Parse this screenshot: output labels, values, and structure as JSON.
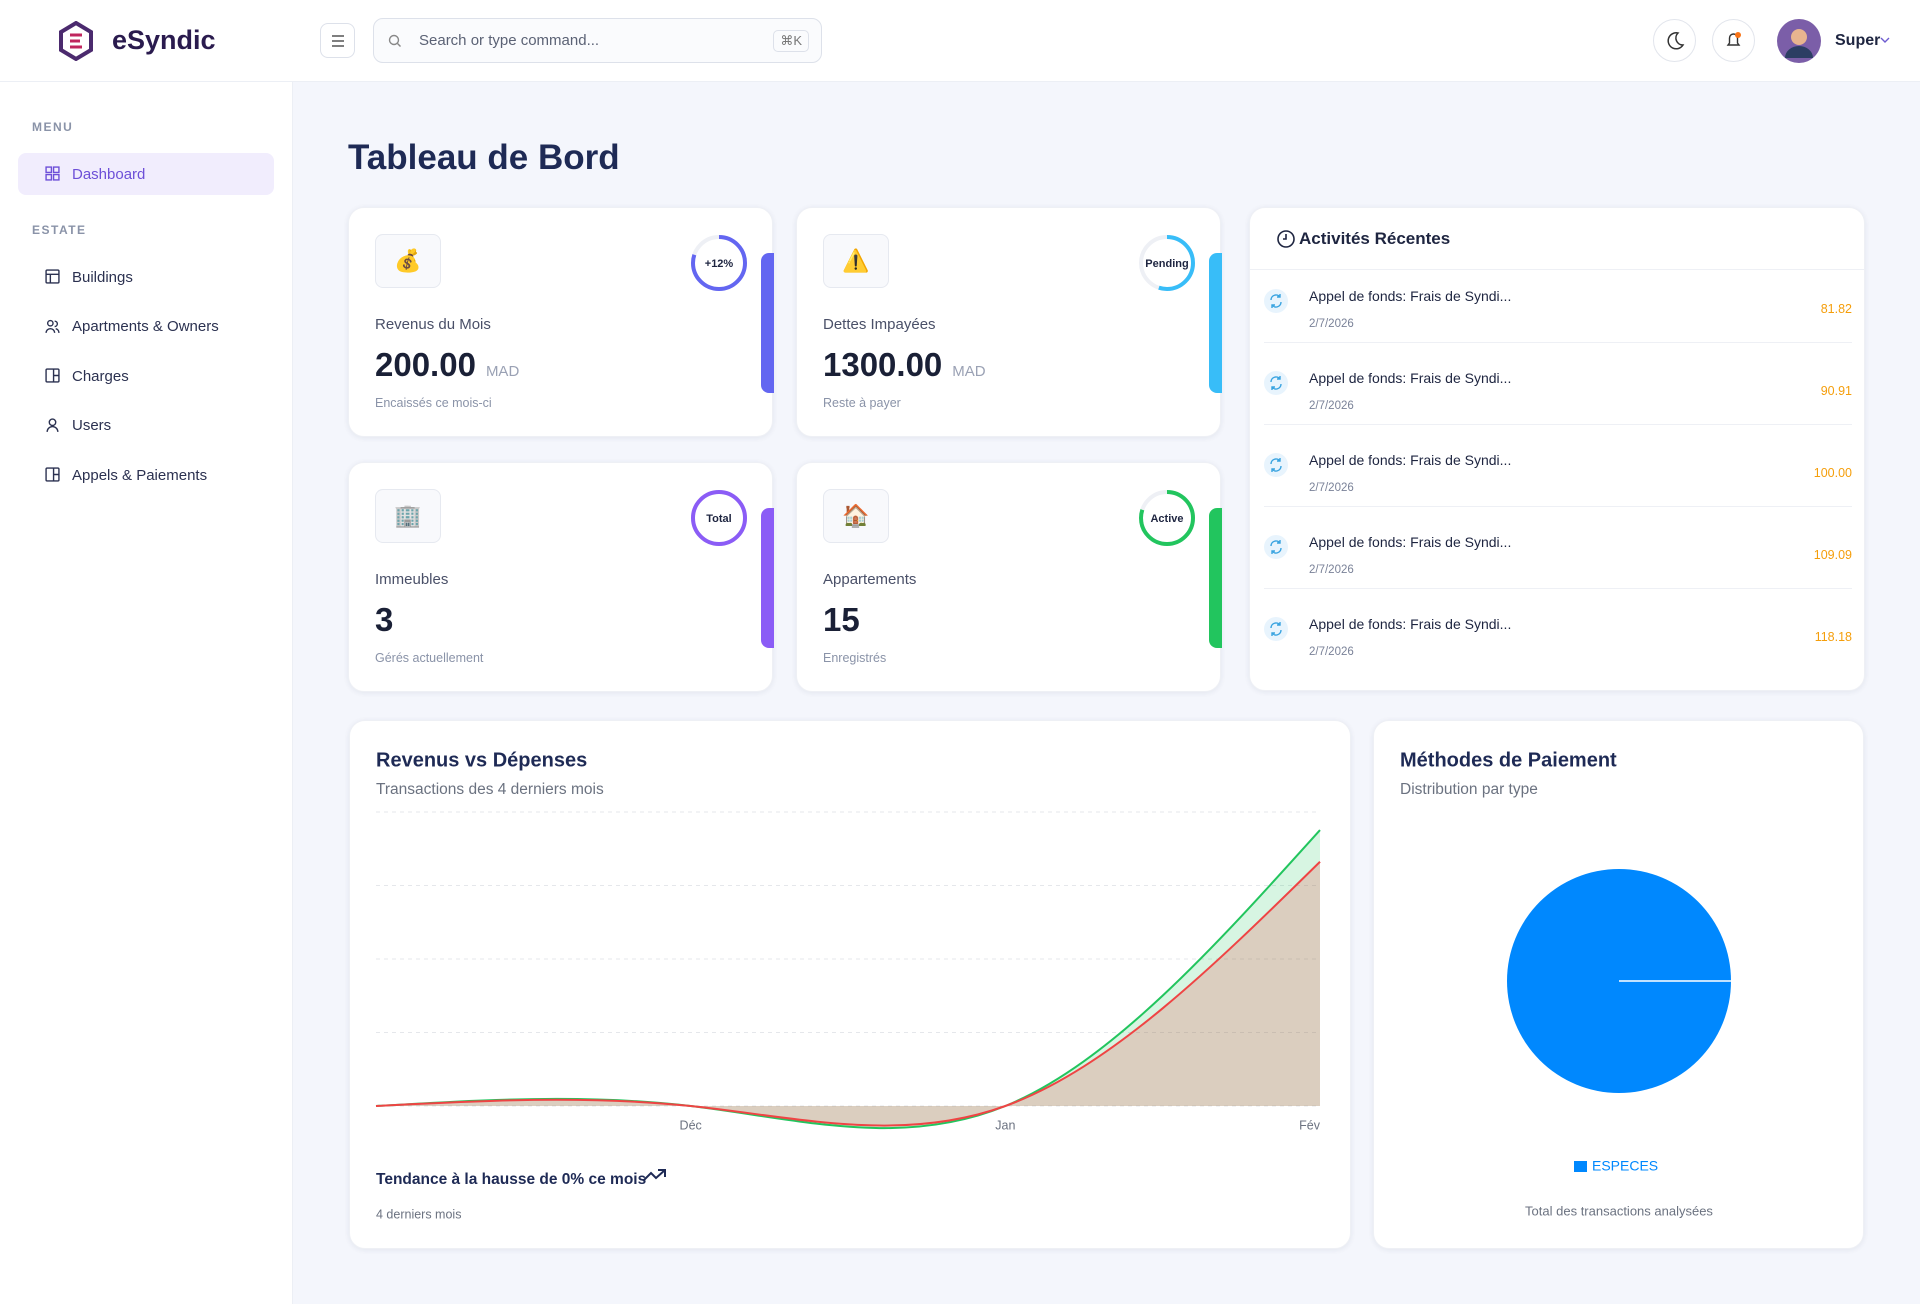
{
  "brand": "eSyndic",
  "header": {
    "search_placeholder": "Search or type command...",
    "shortcut": "⌘K",
    "user": "Super"
  },
  "sidebar": {
    "sections": [
      {
        "title": "MENU",
        "items": [
          "Dashboard"
        ]
      },
      {
        "title": "ESTATE",
        "items": [
          "Buildings",
          "Apartments & Owners",
          "Charges",
          "Users",
          "Appels & Paiements"
        ]
      }
    ]
  },
  "page_title": "Tableau de Bord",
  "stats": [
    {
      "icon": "💰",
      "label": "Revenus du Mois",
      "value": "200.00",
      "unit": "MAD",
      "note": "Encaissés ce mois-ci",
      "badge": "+12%"
    },
    {
      "icon": "⚠️",
      "label": "Dettes Impayées",
      "value": "1300.00",
      "unit": "MAD",
      "note": "Reste à payer",
      "badge": "Pending"
    },
    {
      "icon": "🏢",
      "label": "Immeubles",
      "value": "3",
      "note": "Gérés actuellement",
      "badge": "Total"
    },
    {
      "icon": "🏠",
      "label": "Appartements",
      "value": "15",
      "note": "Enregistrés",
      "badge": "Active"
    }
  ],
  "activity": {
    "title": "Activités Récentes",
    "items": [
      {
        "title": "Appel de fonds: Frais de Syndi...",
        "date": "2/7/2026",
        "amount": "81.82"
      },
      {
        "title": "Appel de fonds: Frais de Syndi...",
        "date": "2/7/2026",
        "amount": "90.91"
      },
      {
        "title": "Appel de fonds: Frais de Syndi...",
        "date": "2/7/2026",
        "amount": "100.00"
      },
      {
        "title": "Appel de fonds: Frais de Syndi...",
        "date": "2/7/2026",
        "amount": "109.09"
      },
      {
        "title": "Appel de fonds: Frais de Syndi...",
        "date": "2/7/2026",
        "amount": "118.18"
      }
    ]
  },
  "chart_data": [
    {
      "type": "area",
      "title": "Revenus vs Dépenses",
      "subtitle": "Transactions des 4 derniers mois",
      "categories": [
        null,
        "Déc",
        "Jan",
        "Fév"
      ],
      "series": [
        {
          "color": "#22c55e",
          "values": [
            0,
            0,
            0,
            1220
          ]
        },
        {
          "color": "#ef4444",
          "values": [
            0,
            0,
            0,
            1080
          ]
        }
      ],
      "ylim": [
        0,
        1300
      ],
      "grid": true,
      "trend": "Tendance à la hausse de 0% ce mois",
      "footnote": "4 derniers mois"
    },
    {
      "type": "pie",
      "title": "Méthodes de Paiement",
      "subtitle": "Distribution par type",
      "categories": [
        "ESPECES"
      ],
      "values": [
        100
      ],
      "colors": [
        "#0088fe"
      ],
      "footnote": "Total des transactions analysées"
    }
  ]
}
